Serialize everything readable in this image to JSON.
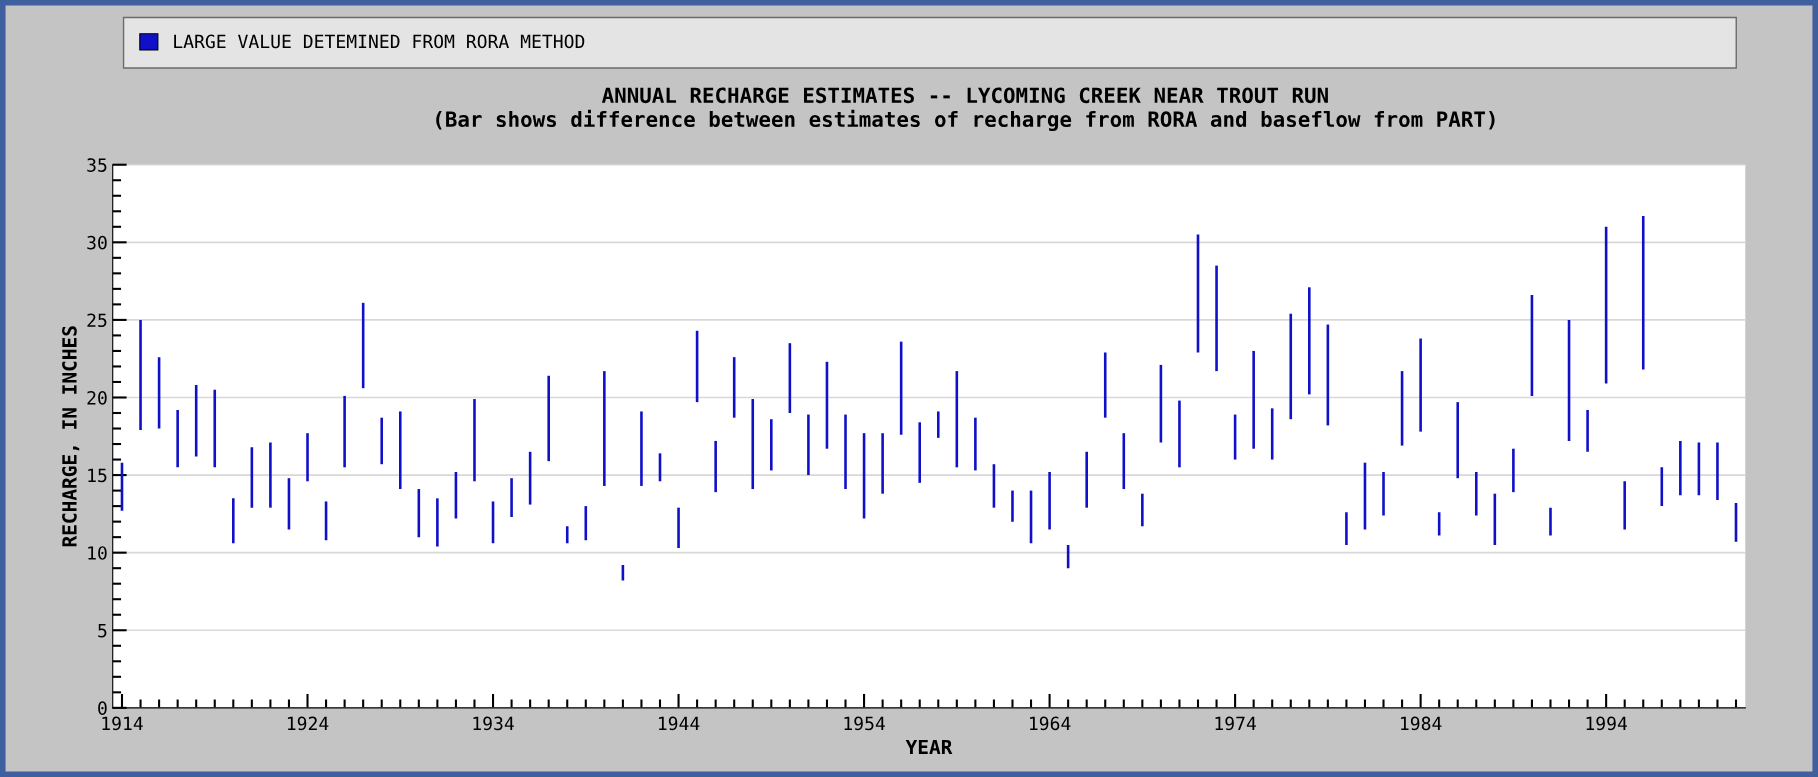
{
  "chart_data": {
    "type": "bar",
    "title": "ANNUAL RECHARGE ESTIMATES -- LYCOMING CREEK NEAR TROUT RUN",
    "subtitle": "(Bar shows difference between estimates of recharge from RORA and baseflow from PART)",
    "xlabel": "YEAR",
    "ylabel": "RECHARGE, IN INCHES",
    "x": [
      1914,
      1915,
      1916,
      1917,
      1918,
      1919,
      1920,
      1921,
      1922,
      1923,
      1924,
      1925,
      1926,
      1927,
      1928,
      1929,
      1930,
      1931,
      1932,
      1933,
      1934,
      1935,
      1936,
      1937,
      1938,
      1939,
      1940,
      1941,
      1942,
      1943,
      1944,
      1945,
      1946,
      1947,
      1948,
      1949,
      1950,
      1951,
      1952,
      1953,
      1954,
      1955,
      1956,
      1957,
      1958,
      1959,
      1960,
      1961,
      1962,
      1963,
      1964,
      1965,
      1966,
      1967,
      1968,
      1969,
      1970,
      1971,
      1972,
      1973,
      1974,
      1975,
      1976,
      1977,
      1978,
      1979,
      1980,
      1981,
      1982,
      1983,
      1984,
      1985,
      1986,
      1987,
      1988,
      1989,
      1990,
      1991,
      1992,
      1993,
      1994,
      1995,
      1996,
      1997,
      1998,
      1999,
      2000,
      2001
    ],
    "series": [
      {
        "name": "LARGE VALUE DETEMINED FROM RORA METHOD",
        "color": "#1010c8",
        "base": [
          12.7,
          17.9,
          18.0,
          15.5,
          16.2,
          15.5,
          10.6,
          12.9,
          12.9,
          11.5,
          14.6,
          10.8,
          15.5,
          20.6,
          15.7,
          14.1,
          11.0,
          10.4,
          12.2,
          14.6,
          10.6,
          12.3,
          13.1,
          15.9,
          10.6,
          10.8,
          14.3,
          8.2,
          14.3,
          14.6,
          10.3,
          19.7,
          13.9,
          18.7,
          14.1,
          15.3,
          19.0,
          15.0,
          16.7,
          14.1,
          12.2,
          13.8,
          17.6,
          14.5,
          17.4,
          15.5,
          15.3,
          12.9,
          12.0,
          10.6,
          11.5,
          9.0,
          12.9,
          18.7,
          14.1,
          11.7,
          17.1,
          15.5,
          22.9,
          21.7,
          16.0,
          16.7,
          16.0,
          18.6,
          20.2,
          18.2,
          10.5,
          11.5,
          12.4,
          16.9,
          17.8,
          11.1,
          14.8,
          12.4,
          10.5,
          13.9,
          20.1,
          11.1,
          17.2,
          16.5,
          20.9,
          11.5,
          21.8,
          13.0,
          13.7,
          13.7,
          13.4,
          10.7
        ],
        "values": [
          3.1,
          7.1,
          4.6,
          3.7,
          4.6,
          5.0,
          2.9,
          3.9,
          4.2,
          3.3,
          3.1,
          2.5,
          4.6,
          5.5,
          3.0,
          5.0,
          3.1,
          3.1,
          3.0,
          5.3,
          2.7,
          2.5,
          3.4,
          5.5,
          1.1,
          2.2,
          7.4,
          1.0,
          4.8,
          1.8,
          2.6,
          4.6,
          3.3,
          3.9,
          5.8,
          3.3,
          4.5,
          3.9,
          5.6,
          4.8,
          5.5,
          3.9,
          6.0,
          3.9,
          1.7,
          6.2,
          3.4,
          2.8,
          2.0,
          3.4,
          3.7,
          1.5,
          3.6,
          4.2,
          3.6,
          2.1,
          5.0,
          4.3,
          7.6,
          6.8,
          2.9,
          6.3,
          3.3,
          6.8,
          6.9,
          6.5,
          2.1,
          4.3,
          2.8,
          4.8,
          6.0,
          1.5,
          4.9,
          2.8,
          3.3,
          2.8,
          6.5,
          1.8,
          7.8,
          2.7,
          10.1,
          3.1,
          9.9,
          2.5,
          3.5,
          3.4,
          3.7,
          2.5
        ]
      }
    ],
    "xlim": [
      1913.5,
      2001.5
    ],
    "xticks": [
      1914,
      1924,
      1934,
      1944,
      1954,
      1964,
      1974,
      1984,
      1994
    ],
    "ylim": [
      0,
      35
    ],
    "yticks": [
      0,
      5,
      10,
      15,
      20,
      25,
      30,
      35
    ],
    "grid": "y",
    "legend": "top"
  }
}
